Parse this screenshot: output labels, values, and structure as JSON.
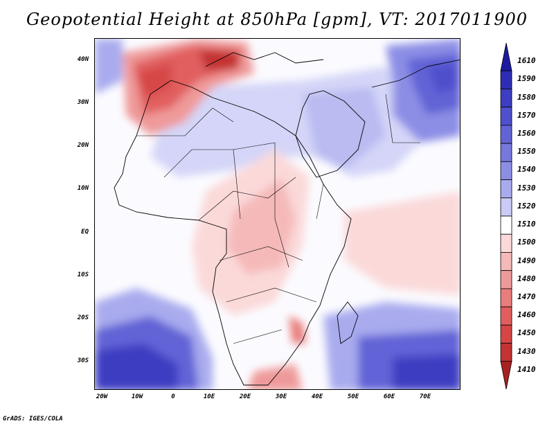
{
  "title": "Geopotential Height at 850hPa [gpm], VT: 2017011900",
  "footer": "GrADS: IGES/COLA",
  "latitude_labels": [
    "40N",
    "30N",
    "20N",
    "10N",
    "EQ",
    "10S",
    "20S",
    "30S"
  ],
  "longitude_labels": [
    "20W",
    "10W",
    "0",
    "10E",
    "20E",
    "30E",
    "40E",
    "50E",
    "60E",
    "70E"
  ],
  "colorbar": {
    "levels": [
      "1610",
      "1590",
      "1580",
      "1570",
      "1560",
      "1550",
      "1540",
      "1530",
      "1520",
      "1510",
      "1500",
      "1490",
      "1480",
      "1470",
      "1460",
      "1450",
      "1430",
      "1410"
    ],
    "colors": [
      "#1e1ba0",
      "#2d2db4",
      "#3d3ec2",
      "#4f50cc",
      "#6264d6",
      "#7678dd",
      "#8c8ee5",
      "#a9abee",
      "#cacbf6",
      "#ffffff",
      "#fbd9d9",
      "#f5b9b9",
      "#ef9a9a",
      "#e97c7c",
      "#e15e5e",
      "#d64646",
      "#c33333",
      "#a82222"
    ]
  },
  "chart_data": {
    "type": "heatmap",
    "title": "Geopotential Height at 850hPa [gpm], VT: 2017011900",
    "variable": "Geopotential Height",
    "level": "850hPa",
    "units": "gpm",
    "valid_time": "2017011900",
    "x_range": [
      -22,
      80
    ],
    "y_range": [
      -37,
      45
    ],
    "x_ticks": [
      "20W",
      "10W",
      "0",
      "10E",
      "20E",
      "30E",
      "40E",
      "50E",
      "60E",
      "70E"
    ],
    "y_ticks": [
      "40N",
      "30N",
      "20N",
      "10N",
      "EQ",
      "10S",
      "20S",
      "30S"
    ],
    "contour_levels": [
      1410,
      1430,
      1450,
      1460,
      1470,
      1480,
      1490,
      1500,
      1510,
      1520,
      1530,
      1540,
      1550,
      1560,
      1570,
      1580,
      1590,
      1610
    ]
  }
}
